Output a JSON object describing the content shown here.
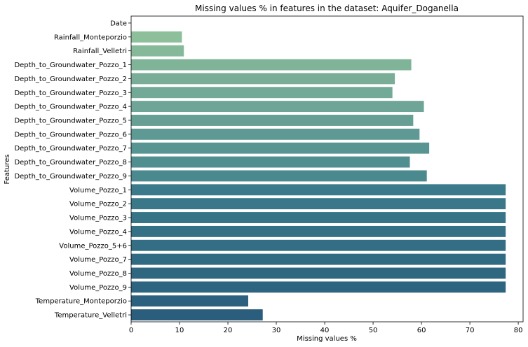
{
  "chart_data": {
    "type": "bar",
    "orientation": "horizontal",
    "title": "Missing values % in features in the dataset: Aquifer_Doganella",
    "xlabel": "Missing values %",
    "ylabel": "Features",
    "xlim": [
      0,
      81
    ],
    "xticks": [
      0,
      10,
      20,
      30,
      40,
      50,
      60,
      70,
      80
    ],
    "grid": false,
    "legend": "none",
    "palette": "crest",
    "categories": [
      "Date",
      "Rainfall_Monteporzio",
      "Rainfall_Velletri",
      "Depth_to_Groundwater_Pozzo_1",
      "Depth_to_Groundwater_Pozzo_2",
      "Depth_to_Groundwater_Pozzo_3",
      "Depth_to_Groundwater_Pozzo_4",
      "Depth_to_Groundwater_Pozzo_5",
      "Depth_to_Groundwater_Pozzo_6",
      "Depth_to_Groundwater_Pozzo_7",
      "Depth_to_Groundwater_Pozzo_8",
      "Depth_to_Groundwater_Pozzo_9",
      "Volume_Pozzo_1",
      "Volume_Pozzo_2",
      "Volume_Pozzo_3",
      "Volume_Pozzo_4",
      "Volume_Pozzo_5+6",
      "Volume_Pozzo_7",
      "Volume_Pozzo_8",
      "Volume_Pozzo_9",
      "Temperature_Monteporzio",
      "Temperature_Velletri"
    ],
    "values": [
      0,
      10.5,
      10.9,
      57.9,
      54.5,
      54.0,
      60.5,
      58.3,
      59.6,
      61.6,
      57.6,
      61.1,
      77.4,
      77.4,
      77.4,
      77.4,
      77.4,
      77.4,
      77.4,
      77.4,
      24.2,
      27.2
    ],
    "colors": [
      "#a0cf9f",
      "#8cbf9a",
      "#86b99a",
      "#7fb499",
      "#79ad98",
      "#73a997",
      "#6ea596",
      "#679f95",
      "#5f9993",
      "#589491",
      "#518e8f",
      "#4a898d",
      "#3a7a8a",
      "#397789",
      "#377488",
      "#357186",
      "#336e85",
      "#316a83",
      "#2f6781",
      "#2d6480",
      "#2b617e",
      "#2a5e7c"
    ]
  }
}
